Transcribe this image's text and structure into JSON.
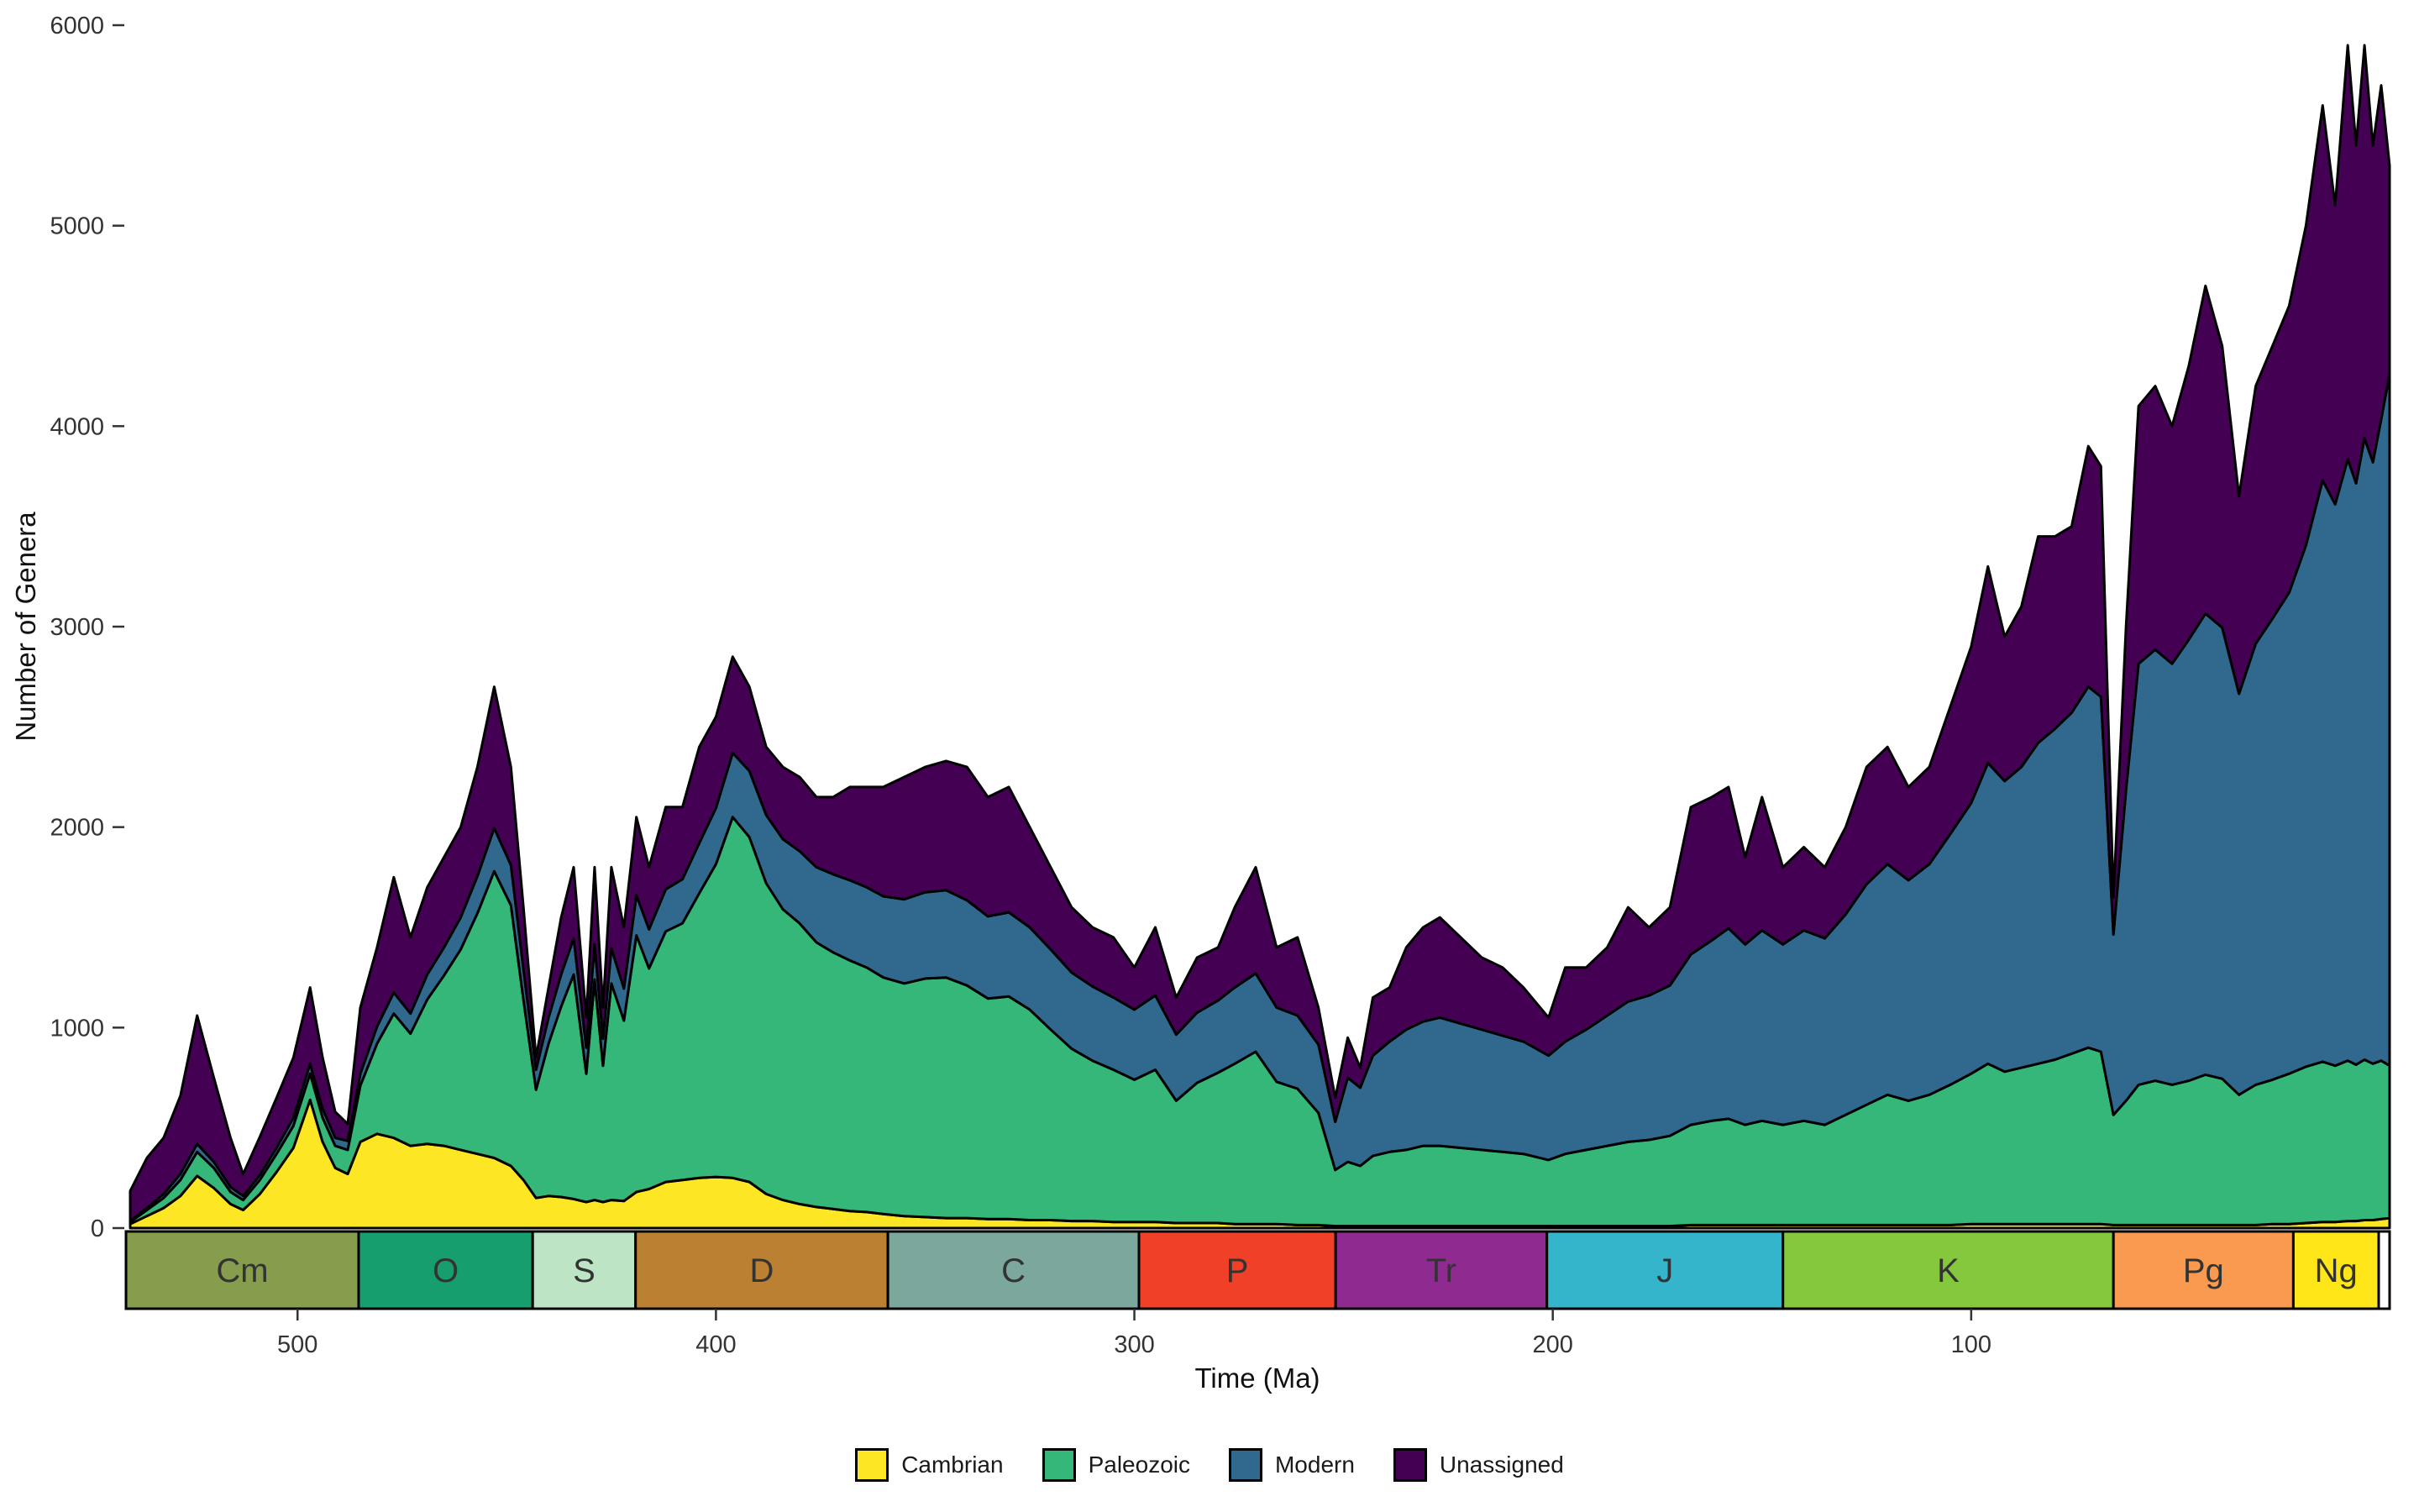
{
  "figure": {
    "background": "#FFFFFF"
  },
  "chart_data": {
    "type": "area",
    "stacked": true,
    "title": "",
    "xlabel": "Time (Ma)",
    "ylabel": "Number of Genera",
    "x_axis": {
      "label": "Time (Ma)",
      "reversed": true,
      "range": [
        541,
        0
      ],
      "ticks": [
        500,
        400,
        300,
        200,
        100
      ]
    },
    "y_axis": {
      "label": "Number of Genera",
      "range": [
        0,
        6000
      ],
      "ticks": [
        0,
        1000,
        2000,
        3000,
        4000,
        5000,
        6000
      ]
    },
    "grid": "off",
    "legend_position": "bottom",
    "outline_color": "#000000",
    "series_names": [
      "Cambrian",
      "Paleozoic",
      "Modern",
      "Unassigned"
    ],
    "series_colors": [
      "#FDE725",
      "#35B779",
      "#31688E",
      "#440154"
    ],
    "points_format": [
      "time_Ma",
      "Cambrian",
      "Paleozoic",
      "Modern",
      "Unassigned"
    ],
    "points": [
      [
        540,
        20,
        10,
        5,
        150
      ],
      [
        536,
        60,
        30,
        10,
        250
      ],
      [
        532,
        100,
        50,
        20,
        280
      ],
      [
        528,
        160,
        80,
        30,
        390
      ],
      [
        524,
        260,
        120,
        40,
        640
      ],
      [
        520,
        200,
        100,
        30,
        420
      ],
      [
        516,
        120,
        60,
        25,
        245
      ],
      [
        513,
        90,
        50,
        20,
        110
      ],
      [
        509,
        170,
        70,
        25,
        190
      ],
      [
        505,
        280,
        90,
        30,
        250
      ],
      [
        501,
        400,
        110,
        40,
        300
      ],
      [
        497,
        640,
        130,
        50,
        380
      ],
      [
        494,
        430,
        120,
        45,
        255
      ],
      [
        491,
        300,
        110,
        40,
        130
      ],
      [
        488,
        270,
        120,
        45,
        85
      ],
      [
        485,
        430,
        280,
        60,
        330
      ],
      [
        481,
        470,
        450,
        85,
        395
      ],
      [
        477,
        450,
        620,
        105,
        575
      ],
      [
        473,
        410,
        560,
        100,
        380
      ],
      [
        469,
        420,
        720,
        125,
        435
      ],
      [
        465,
        410,
        850,
        140,
        450
      ],
      [
        461,
        390,
        1000,
        160,
        450
      ],
      [
        457,
        370,
        1200,
        185,
        545
      ],
      [
        453,
        350,
        1430,
        215,
        705
      ],
      [
        449,
        310,
        1300,
        200,
        490
      ],
      [
        446,
        240,
        900,
        150,
        310
      ],
      [
        443,
        150,
        540,
        100,
        60
      ],
      [
        440,
        160,
        760,
        130,
        150
      ],
      [
        437,
        155,
        950,
        160,
        285
      ],
      [
        434,
        145,
        1120,
        180,
        355
      ],
      [
        431,
        130,
        640,
        130,
        150
      ],
      [
        429,
        140,
        1100,
        175,
        385
      ],
      [
        427,
        130,
        680,
        135,
        155
      ],
      [
        425,
        140,
        1080,
        175,
        405
      ],
      [
        422,
        135,
        900,
        160,
        305
      ],
      [
        419,
        180,
        1280,
        200,
        390
      ],
      [
        416,
        195,
        1100,
        195,
        310
      ],
      [
        412,
        230,
        1250,
        210,
        410
      ],
      [
        408,
        240,
        1280,
        220,
        360
      ],
      [
        404,
        250,
        1420,
        250,
        480
      ],
      [
        400,
        255,
        1560,
        280,
        455
      ],
      [
        396,
        250,
        1800,
        320,
        480
      ],
      [
        392,
        230,
        1720,
        330,
        420
      ],
      [
        388,
        170,
        1550,
        340,
        340
      ],
      [
        384,
        140,
        1450,
        350,
        360
      ],
      [
        380,
        120,
        1400,
        360,
        370
      ],
      [
        376,
        105,
        1320,
        375,
        350
      ],
      [
        372,
        95,
        1280,
        390,
        385
      ],
      [
        368,
        85,
        1250,
        400,
        465
      ],
      [
        364,
        80,
        1220,
        400,
        500
      ],
      [
        360,
        70,
        1180,
        405,
        545
      ],
      [
        355,
        60,
        1160,
        420,
        610
      ],
      [
        350,
        55,
        1190,
        430,
        625
      ],
      [
        345,
        50,
        1200,
        435,
        645
      ],
      [
        340,
        50,
        1160,
        425,
        665
      ],
      [
        335,
        45,
        1100,
        410,
        595
      ],
      [
        330,
        45,
        1110,
        420,
        625
      ],
      [
        325,
        40,
        1050,
        410,
        500
      ],
      [
        320,
        40,
        950,
        400,
        410
      ],
      [
        315,
        35,
        860,
        380,
        325
      ],
      [
        310,
        35,
        800,
        370,
        295
      ],
      [
        305,
        30,
        760,
        360,
        300
      ],
      [
        300,
        30,
        710,
        350,
        210
      ],
      [
        295,
        30,
        760,
        370,
        340
      ],
      [
        290,
        25,
        610,
        330,
        185
      ],
      [
        285,
        25,
        700,
        350,
        275
      ],
      [
        280,
        25,
        750,
        360,
        265
      ],
      [
        276,
        20,
        800,
        380,
        400
      ],
      [
        271,
        20,
        860,
        390,
        530
      ],
      [
        266,
        20,
        710,
        370,
        300
      ],
      [
        261,
        15,
        680,
        365,
        390
      ],
      [
        256,
        15,
        560,
        340,
        185
      ],
      [
        252,
        10,
        280,
        240,
        120
      ],
      [
        249,
        10,
        320,
        420,
        200
      ],
      [
        246,
        10,
        300,
        390,
        100
      ],
      [
        243,
        10,
        350,
        500,
        290
      ],
      [
        239,
        10,
        370,
        550,
        270
      ],
      [
        235,
        10,
        380,
        600,
        410
      ],
      [
        231,
        10,
        400,
        620,
        470
      ],
      [
        227,
        10,
        400,
        640,
        500
      ],
      [
        222,
        10,
        390,
        620,
        430
      ],
      [
        217,
        10,
        380,
        600,
        360
      ],
      [
        212,
        10,
        370,
        580,
        340
      ],
      [
        207,
        10,
        360,
        560,
        270
      ],
      [
        201,
        10,
        330,
        520,
        190
      ],
      [
        197,
        10,
        360,
        560,
        370
      ],
      [
        192,
        10,
        380,
        600,
        310
      ],
      [
        187,
        10,
        400,
        650,
        340
      ],
      [
        182,
        10,
        420,
        700,
        470
      ],
      [
        177,
        10,
        430,
        720,
        340
      ],
      [
        172,
        10,
        450,
        750,
        390
      ],
      [
        167,
        15,
        500,
        850,
        735
      ],
      [
        162,
        15,
        520,
        900,
        715
      ],
      [
        158,
        15,
        530,
        950,
        705
      ],
      [
        154,
        15,
        500,
        900,
        435
      ],
      [
        150,
        15,
        520,
        950,
        665
      ],
      [
        145,
        15,
        500,
        900,
        385
      ],
      [
        140,
        15,
        520,
        950,
        415
      ],
      [
        135,
        15,
        500,
        930,
        355
      ],
      [
        130,
        15,
        550,
        1000,
        435
      ],
      [
        125,
        15,
        600,
        1100,
        585
      ],
      [
        120,
        15,
        650,
        1150,
        585
      ],
      [
        115,
        15,
        620,
        1100,
        465
      ],
      [
        110,
        15,
        650,
        1150,
        485
      ],
      [
        105,
        15,
        700,
        1250,
        635
      ],
      [
        100,
        20,
        750,
        1350,
        780
      ],
      [
        96,
        20,
        800,
        1500,
        980
      ],
      [
        92,
        20,
        760,
        1450,
        720
      ],
      [
        88,
        20,
        780,
        1500,
        800
      ],
      [
        84,
        20,
        800,
        1600,
        1030
      ],
      [
        80,
        20,
        820,
        1650,
        960
      ],
      [
        76,
        20,
        850,
        1700,
        930
      ],
      [
        72,
        20,
        880,
        1800,
        1200
      ],
      [
        69,
        20,
        860,
        1770,
        1150
      ],
      [
        66,
        15,
        550,
        900,
        185
      ],
      [
        63,
        15,
        620,
        1550,
        815
      ],
      [
        60,
        15,
        700,
        2100,
        1285
      ],
      [
        56,
        15,
        720,
        2150,
        1315
      ],
      [
        52,
        15,
        700,
        2100,
        1185
      ],
      [
        48,
        15,
        720,
        2200,
        1365
      ],
      [
        44,
        15,
        750,
        2300,
        1635
      ],
      [
        40,
        15,
        730,
        2250,
        1405
      ],
      [
        36,
        15,
        650,
        2000,
        985
      ],
      [
        32,
        15,
        700,
        2200,
        1285
      ],
      [
        28,
        20,
        720,
        2300,
        1360
      ],
      [
        24,
        20,
        750,
        2400,
        1430
      ],
      [
        20,
        25,
        780,
        2600,
        1595
      ],
      [
        16,
        30,
        800,
        2900,
        1870
      ],
      [
        13,
        30,
        780,
        2800,
        1490
      ],
      [
        10,
        35,
        800,
        3000,
        2065
      ],
      [
        8,
        35,
        780,
        2900,
        1685
      ],
      [
        6,
        40,
        800,
        3100,
        1960
      ],
      [
        4,
        40,
        780,
        3000,
        1580
      ],
      [
        2,
        45,
        790,
        3200,
        1665
      ],
      [
        0,
        50,
        760,
        3450,
        1040
      ]
    ],
    "periods": [
      {
        "label": "Cm",
        "start": 541,
        "end": 485.4,
        "color": "#869D4E"
      },
      {
        "label": "O",
        "start": 485.4,
        "end": 443.8,
        "color": "#169E6E"
      },
      {
        "label": "S",
        "start": 443.8,
        "end": 419.2,
        "color": "#BCE4C5"
      },
      {
        "label": "D",
        "start": 419.2,
        "end": 358.9,
        "color": "#BB8032"
      },
      {
        "label": "C",
        "start": 358.9,
        "end": 298.9,
        "color": "#7BA79D"
      },
      {
        "label": "P",
        "start": 298.9,
        "end": 251.9,
        "color": "#F04028"
      },
      {
        "label": "Tr",
        "start": 251.9,
        "end": 201.4,
        "color": "#8F2A90"
      },
      {
        "label": "J",
        "start": 201.4,
        "end": 145.0,
        "color": "#35B5CC"
      },
      {
        "label": "K",
        "start": 145.0,
        "end": 66.0,
        "color": "#86C83D"
      },
      {
        "label": "Pg",
        "start": 66.0,
        "end": 23.0,
        "color": "#FA9A50"
      },
      {
        "label": "Ng",
        "start": 23.0,
        "end": 2.6,
        "color": "#FFE619"
      },
      {
        "label": "",
        "start": 2.6,
        "end": 0.0,
        "color": "#FFFFFF"
      }
    ],
    "legend": [
      {
        "label": "Cambrian",
        "color": "#FDE725"
      },
      {
        "label": "Paleozoic",
        "color": "#35B779"
      },
      {
        "label": "Modern",
        "color": "#31688E"
      },
      {
        "label": "Unassigned",
        "color": "#440154"
      }
    ]
  }
}
